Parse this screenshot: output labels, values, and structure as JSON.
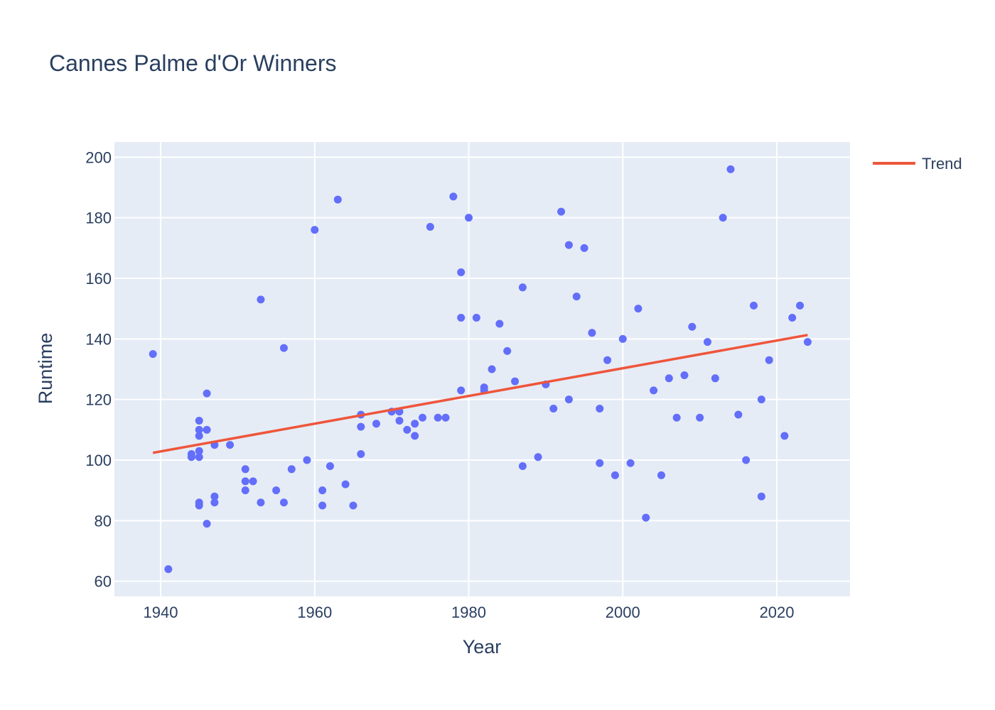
{
  "chart_data": {
    "type": "scatter",
    "title": "Cannes Palme d'Or Winners",
    "xlabel": "Year",
    "ylabel": "Runtime",
    "xlim": [
      1934,
      2029.5
    ],
    "ylim": [
      55,
      205
    ],
    "xticks": [
      1940,
      1960,
      1980,
      2000,
      2020
    ],
    "yticks": [
      60,
      80,
      100,
      120,
      140,
      160,
      180,
      200
    ],
    "grid": true,
    "legend": "top-right",
    "marker_color": "#636efa",
    "plot_bg": "#e5ecf6",
    "series": [
      {
        "type": "scatter",
        "points": [
          [
            1939,
            135
          ],
          [
            1941,
            64
          ],
          [
            1944,
            102
          ],
          [
            1944,
            101
          ],
          [
            1945,
            113
          ],
          [
            1945,
            110
          ],
          [
            1945,
            108
          ],
          [
            1945,
            103
          ],
          [
            1945,
            101
          ],
          [
            1945,
            86
          ],
          [
            1945,
            85
          ],
          [
            1946,
            122
          ],
          [
            1946,
            110
          ],
          [
            1946,
            79
          ],
          [
            1947,
            105
          ],
          [
            1947,
            88
          ],
          [
            1947,
            86
          ],
          [
            1949,
            105
          ],
          [
            1951,
            97
          ],
          [
            1951,
            93
          ],
          [
            1951,
            90
          ],
          [
            1952,
            93
          ],
          [
            1953,
            153
          ],
          [
            1953,
            86
          ],
          [
            1955,
            90
          ],
          [
            1956,
            137
          ],
          [
            1956,
            86
          ],
          [
            1957,
            97
          ],
          [
            1959,
            100
          ],
          [
            1960,
            176
          ],
          [
            1961,
            90
          ],
          [
            1961,
            85
          ],
          [
            1962,
            98
          ],
          [
            1963,
            186
          ],
          [
            1964,
            92
          ],
          [
            1965,
            85
          ],
          [
            1966,
            115
          ],
          [
            1966,
            111
          ],
          [
            1966,
            102
          ],
          [
            1968,
            112
          ],
          [
            1970,
            116
          ],
          [
            1971,
            116
          ],
          [
            1971,
            113
          ],
          [
            1972,
            110
          ],
          [
            1973,
            112
          ],
          [
            1973,
            108
          ],
          [
            1974,
            114
          ],
          [
            1975,
            177
          ],
          [
            1976,
            114
          ],
          [
            1977,
            114
          ],
          [
            1978,
            187
          ],
          [
            1979,
            162
          ],
          [
            1979,
            147
          ],
          [
            1979,
            123
          ],
          [
            1980,
            180
          ],
          [
            1981,
            147
          ],
          [
            1982,
            124
          ],
          [
            1982,
            123
          ],
          [
            1983,
            130
          ],
          [
            1984,
            145
          ],
          [
            1985,
            136
          ],
          [
            1986,
            126
          ],
          [
            1987,
            157
          ],
          [
            1987,
            98
          ],
          [
            1989,
            101
          ],
          [
            1990,
            125
          ],
          [
            1991,
            117
          ],
          [
            1992,
            182
          ],
          [
            1993,
            171
          ],
          [
            1993,
            120
          ],
          [
            1994,
            154
          ],
          [
            1995,
            170
          ],
          [
            1996,
            142
          ],
          [
            1997,
            117
          ],
          [
            1997,
            99
          ],
          [
            1998,
            133
          ],
          [
            1999,
            95
          ],
          [
            2000,
            140
          ],
          [
            2001,
            99
          ],
          [
            2002,
            150
          ],
          [
            2003,
            81
          ],
          [
            2004,
            123
          ],
          [
            2005,
            95
          ],
          [
            2006,
            127
          ],
          [
            2007,
            114
          ],
          [
            2008,
            128
          ],
          [
            2009,
            144
          ],
          [
            2010,
            114
          ],
          [
            2011,
            139
          ],
          [
            2012,
            127
          ],
          [
            2013,
            180
          ],
          [
            2014,
            196
          ],
          [
            2015,
            115
          ],
          [
            2016,
            100
          ],
          [
            2017,
            151
          ],
          [
            2018,
            120
          ],
          [
            2018,
            88
          ],
          [
            2019,
            133
          ],
          [
            2021,
            108
          ],
          [
            2022,
            147
          ],
          [
            2023,
            151
          ],
          [
            2024,
            139
          ]
        ]
      },
      {
        "name": "Trend",
        "type": "line",
        "color": "#ef553b",
        "points": [
          [
            1939,
            102.4
          ],
          [
            2024,
            141.3
          ]
        ]
      }
    ]
  }
}
